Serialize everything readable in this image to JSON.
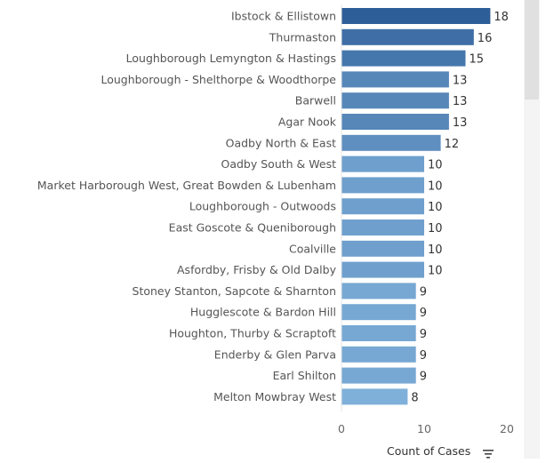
{
  "chart_data": {
    "type": "bar",
    "orientation": "horizontal",
    "categories": [
      "Ibstock & Ellistown",
      "Thurmaston",
      "Loughborough Lemyngton & Hastings",
      "Loughborough - Shelthorpe & Woodthorpe",
      "Barwell",
      "Agar Nook",
      "Oadby North & East",
      "Oadby South & West",
      "Market Harborough West, Great Bowden & Lubenham",
      "Loughborough - Outwoods",
      "East Goscote & Queniborough",
      "Coalville",
      "Asfordby, Frisby & Old Dalby",
      "Stoney Stanton, Sapcote & Sharnton",
      "Hugglescote & Bardon Hill",
      "Houghton, Thurby & Scraptoft",
      "Enderby & Glen Parva",
      "Earl Shilton",
      "Melton Mowbray West"
    ],
    "values": [
      18,
      16,
      15,
      13,
      13,
      13,
      12,
      10,
      10,
      10,
      10,
      10,
      10,
      9,
      9,
      9,
      9,
      9,
      8
    ],
    "xlabel": "Count of Cases",
    "xlim": [
      0,
      22
    ],
    "xticks": [
      "0",
      "10",
      "20"
    ],
    "grid": false,
    "color_scale": {
      "low": "#7fb0da",
      "high": "#2e5e98"
    }
  },
  "axis": {
    "title": "Count of Cases"
  },
  "icons": {
    "sort": "sort-descending-icon"
  }
}
